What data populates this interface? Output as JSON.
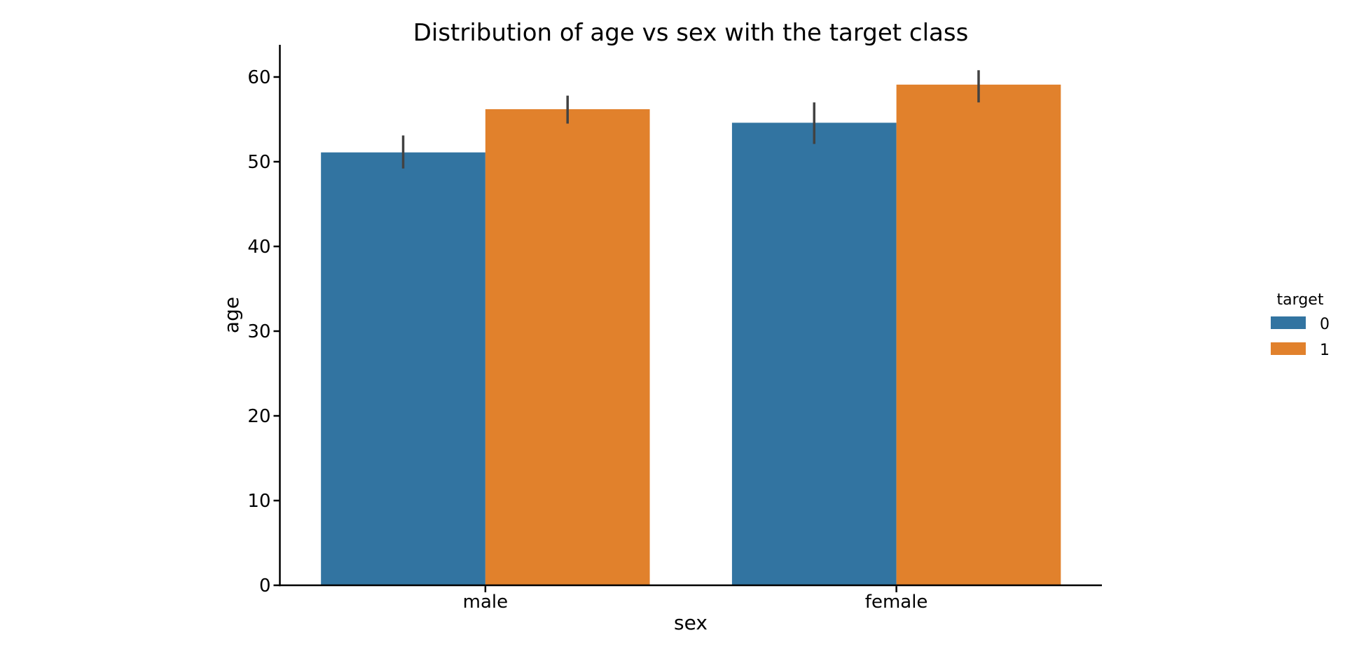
{
  "chart_data": {
    "type": "bar",
    "title": "Distribution of age vs sex with the target class",
    "xlabel": "sex",
    "ylabel": "age",
    "categories": [
      "male",
      "female"
    ],
    "series": [
      {
        "name": "0",
        "color": "#3274a1",
        "values": [
          51.1,
          54.6
        ],
        "ci": [
          [
            49.2,
            53.1
          ],
          [
            52.1,
            57.0
          ]
        ]
      },
      {
        "name": "1",
        "color": "#e1812c",
        "values": [
          56.2,
          59.1
        ],
        "ci": [
          [
            54.5,
            57.8
          ],
          [
            57.0,
            60.8
          ]
        ]
      }
    ],
    "yticks": [
      0,
      10,
      20,
      30,
      40,
      50,
      60
    ],
    "ylim": [
      0,
      63.8
    ],
    "legend_title": "target",
    "legend_position": "right",
    "grid": false,
    "bar_group_width": 0.8,
    "error_bar_color": "#424242",
    "axis_color": "#000000",
    "text_color": "#000000",
    "background": "#ffffff"
  }
}
